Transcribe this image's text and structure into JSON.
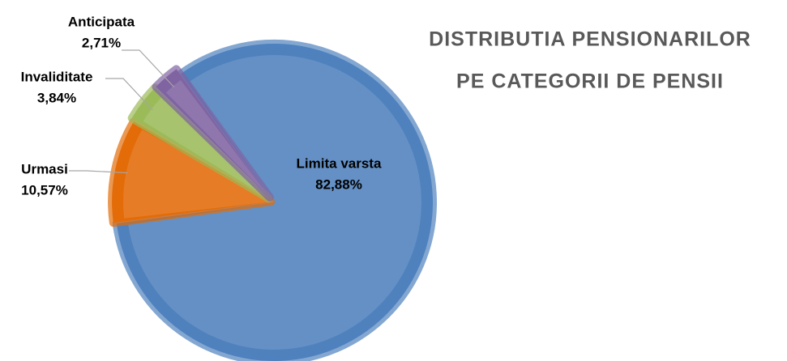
{
  "chart_data": {
    "type": "pie",
    "title": [
      "DISTRIBUTIA PENSIONARILOR",
      "PE CATEGORII DE PENSII"
    ],
    "categories": [
      "Limita varsta",
      "Urmasi",
      "Invaliditate",
      "Anticipata"
    ],
    "values": [
      82.88,
      10.57,
      3.84,
      2.71
    ],
    "value_labels": [
      "82,88%",
      "10,57%",
      "3,84%",
      "2,71%"
    ],
    "colors": [
      "#4f81bd",
      "#e36c09",
      "#9bbb59",
      "#8064a2"
    ]
  }
}
